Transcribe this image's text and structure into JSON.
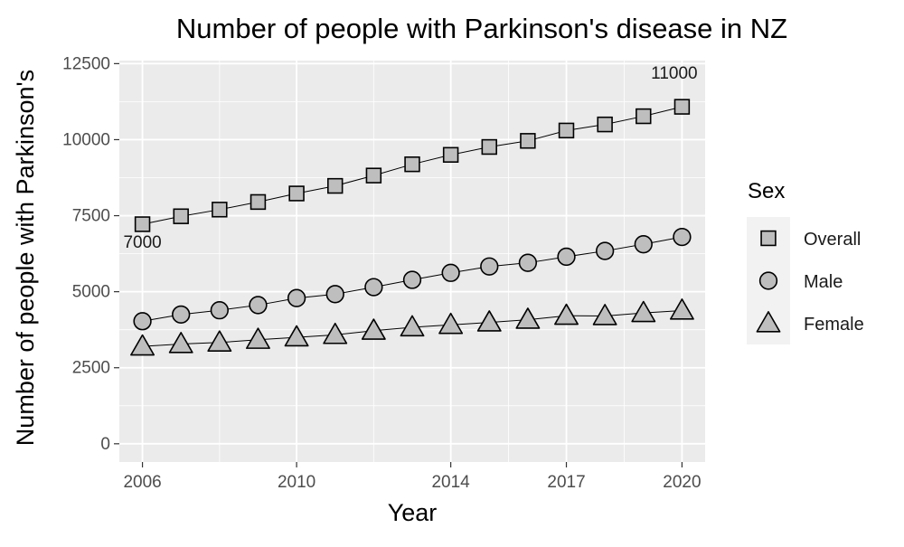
{
  "chart_data": {
    "type": "line",
    "title": "Number of people with Parkinson's disease in NZ",
    "xlabel": "Year",
    "ylabel": "Number of people with Parkinson's",
    "x": [
      2006,
      2007,
      2008,
      2009,
      2010,
      2011,
      2012,
      2013,
      2014,
      2015,
      2016,
      2017,
      2018,
      2019,
      2020
    ],
    "xlim": [
      2005.4,
      2020.6
    ],
    "ylim": [
      -600,
      12600
    ],
    "x_ticks": [
      2006,
      2010,
      2014,
      2017,
      2020
    ],
    "y_ticks": [
      0,
      2500,
      5000,
      7500,
      10000,
      12500
    ],
    "grid": true,
    "legend": {
      "title": "Sex",
      "placement": "right"
    },
    "series": [
      {
        "name": "Overall",
        "marker": "square",
        "values": [
          7220,
          7480,
          7700,
          7950,
          8230,
          8480,
          8820,
          9190,
          9500,
          9760,
          9960,
          10300,
          10500,
          10770,
          11080
        ]
      },
      {
        "name": "Male",
        "marker": "circle",
        "values": [
          4030,
          4250,
          4390,
          4560,
          4790,
          4920,
          5150,
          5390,
          5620,
          5830,
          5950,
          6150,
          6340,
          6560,
          6800
        ]
      },
      {
        "name": "Female",
        "marker": "triangle",
        "values": [
          3200,
          3280,
          3330,
          3420,
          3500,
          3580,
          3720,
          3830,
          3910,
          3990,
          4080,
          4210,
          4200,
          4300,
          4380
        ]
      }
    ],
    "annotations": [
      {
        "text": "7000",
        "x": 2006,
        "y": 6450
      },
      {
        "text": "11000",
        "x": 2019.8,
        "y": 12000
      }
    ],
    "colors": {
      "panel": "#ebebeb",
      "grid": "#ffffff",
      "marker_fill": "#bebebe",
      "line": "#000000",
      "text": "#1a1a1a",
      "tick_text": "#4d4d4d",
      "legend_key_bg": "#f2f2f2"
    }
  }
}
